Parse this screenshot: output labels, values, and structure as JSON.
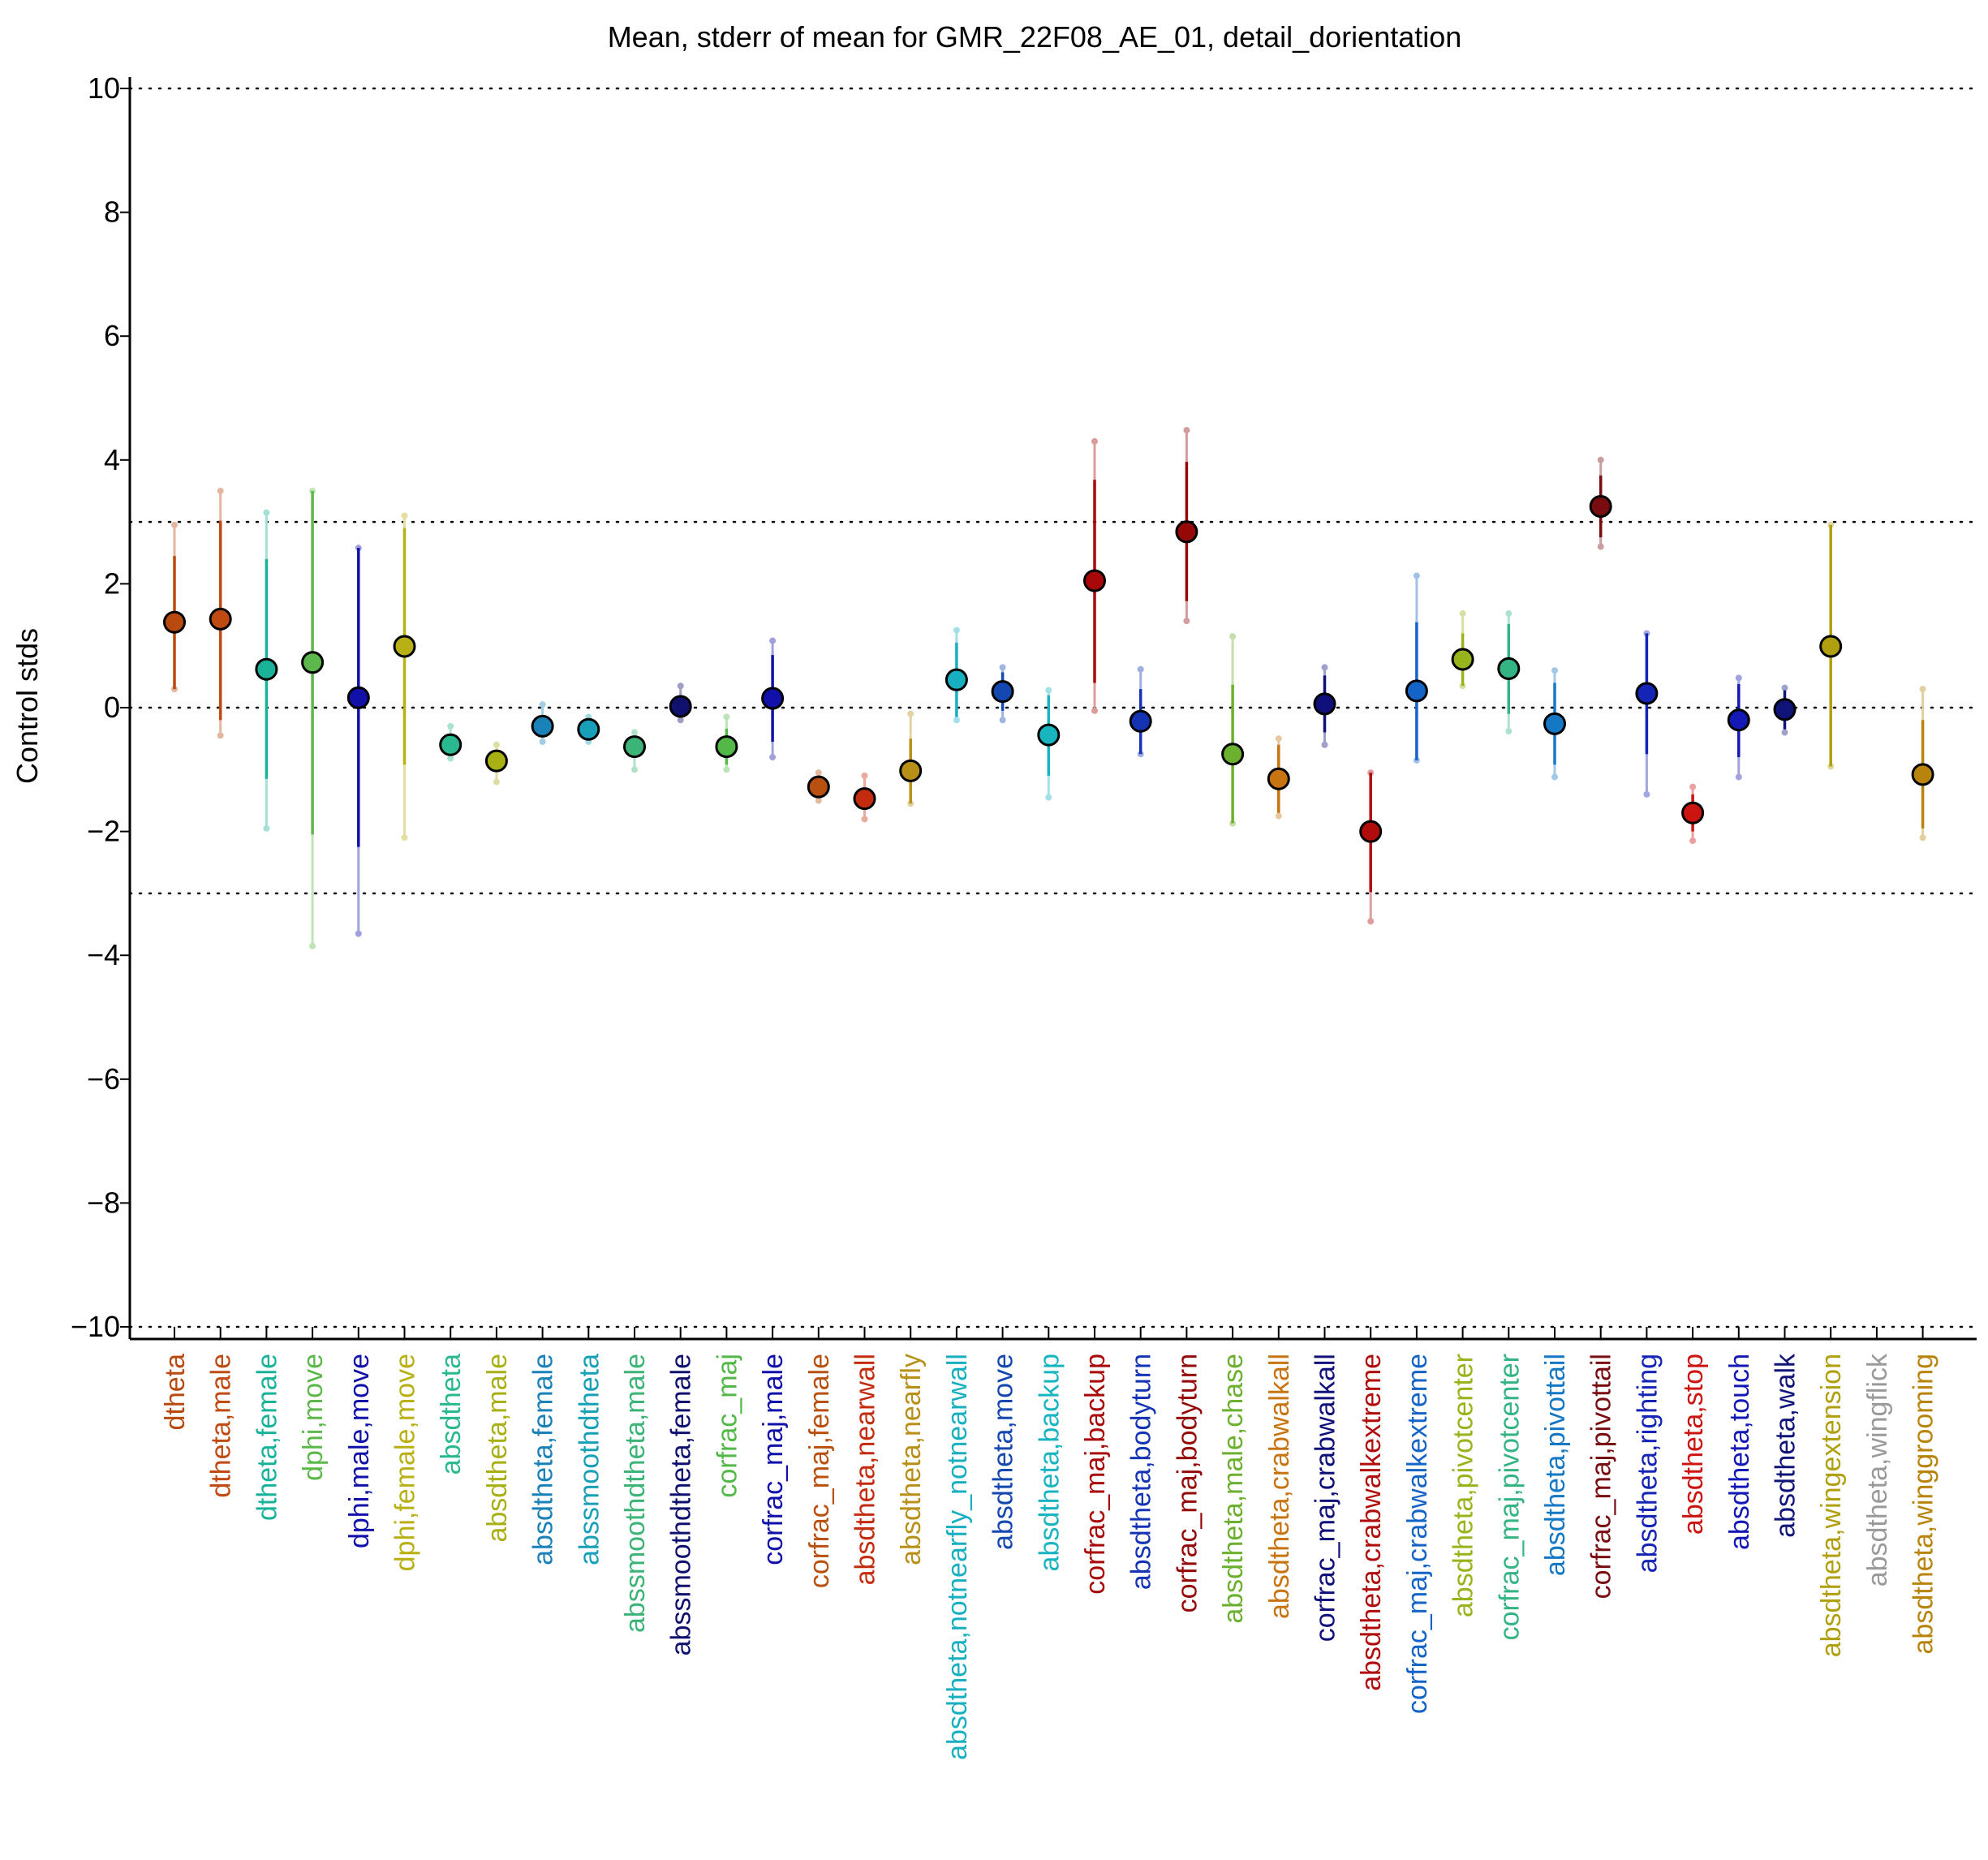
{
  "chart_data": {
    "type": "scatter",
    "title": "Mean, stderr of mean for GMR_22F08_AE_01, detail_dorientation",
    "xlabel": "",
    "ylabel": "Control stds",
    "ylim": [
      -10.2,
      10.2
    ],
    "yticks": [
      10,
      8,
      6,
      4,
      2,
      0,
      -2,
      -4,
      -6,
      -8,
      -10
    ],
    "ytick_labels": [
      "10",
      "8",
      "6",
      "4",
      "2",
      "0",
      "−2",
      "−4",
      "−6",
      "−8",
      "−10"
    ],
    "reference_lines": [
      10,
      3,
      0,
      -3,
      -10
    ],
    "grid": false,
    "points": [
      {
        "label": "dtheta",
        "color": "#b84a10",
        "mean": 1.38,
        "se_lo": 0.3,
        "se_hi": 2.45,
        "ext_lo": 0.3,
        "ext_hi": 2.95
      },
      {
        "label": "dtheta,male",
        "color": "#bf4a12",
        "mean": 1.43,
        "se_lo": -0.2,
        "se_hi": 3.02,
        "ext_lo": -0.45,
        "ext_hi": 3.5
      },
      {
        "label": "dtheta,female",
        "color": "#1ab39a",
        "mean": 0.62,
        "se_lo": -1.15,
        "se_hi": 2.4,
        "ext_lo": -1.95,
        "ext_hi": 3.15
      },
      {
        "label": "dphi,move",
        "color": "#5cb84a",
        "mean": 0.73,
        "se_lo": -2.05,
        "se_hi": 3.5,
        "ext_lo": -3.85,
        "ext_hi": 3.5
      },
      {
        "label": "dphi,male,move",
        "color": "#1111aa",
        "mean": 0.16,
        "se_lo": -2.25,
        "se_hi": 2.58,
        "ext_lo": -3.65,
        "ext_hi": 2.58
      },
      {
        "label": "dphi,female,move",
        "color": "#b8b014",
        "mean": 0.99,
        "se_lo": -0.92,
        "se_hi": 2.9,
        "ext_lo": -2.1,
        "ext_hi": 3.1
      },
      {
        "label": "absdtheta",
        "color": "#2ab890",
        "mean": -0.6,
        "se_lo": -0.72,
        "se_hi": -0.47,
        "ext_lo": -0.82,
        "ext_hi": -0.3
      },
      {
        "label": "absdtheta,male",
        "color": "#a8b014",
        "mean": -0.86,
        "se_lo": -1.0,
        "se_hi": -0.72,
        "ext_lo": -1.2,
        "ext_hi": -0.6
      },
      {
        "label": "absdtheta,female",
        "color": "#1a82b8",
        "mean": -0.3,
        "se_lo": -0.44,
        "se_hi": -0.17,
        "ext_lo": -0.55,
        "ext_hi": 0.05
      },
      {
        "label": "abssmoothdtheta",
        "color": "#18a0b8",
        "mean": -0.35,
        "se_lo": -0.45,
        "se_hi": -0.25,
        "ext_lo": -0.55,
        "ext_hi": -0.15
      },
      {
        "label": "abssmoothdtheta,male",
        "color": "#3cb478",
        "mean": -0.63,
        "se_lo": -0.8,
        "se_hi": -0.46,
        "ext_lo": -1.0,
        "ext_hi": -0.4
      },
      {
        "label": "abssmoothdtheta,female",
        "color": "#10106e",
        "mean": 0.02,
        "se_lo": -0.12,
        "se_hi": 0.16,
        "ext_lo": -0.2,
        "ext_hi": 0.35
      },
      {
        "label": "corfrac_maj",
        "color": "#52b848",
        "mean": -0.63,
        "se_lo": -0.92,
        "se_hi": -0.34,
        "ext_lo": -1.0,
        "ext_hi": -0.15
      },
      {
        "label": "corfrac_maj,male",
        "color": "#1111aa",
        "mean": 0.15,
        "se_lo": -0.55,
        "se_hi": 0.85,
        "ext_lo": -0.8,
        "ext_hi": 1.08
      },
      {
        "label": "corfrac_maj,female",
        "color": "#b85010",
        "mean": -1.28,
        "se_lo": -1.4,
        "se_hi": -1.16,
        "ext_lo": -1.5,
        "ext_hi": -1.05
      },
      {
        "label": "absdtheta,nearwall",
        "color": "#c42c10",
        "mean": -1.47,
        "se_lo": -1.6,
        "se_hi": -1.34,
        "ext_lo": -1.8,
        "ext_hi": -1.1
      },
      {
        "label": "absdtheta,nearfly",
        "color": "#b89018",
        "mean": -1.02,
        "se_lo": -1.55,
        "se_hi": -0.5,
        "ext_lo": -1.55,
        "ext_hi": -0.1
      },
      {
        "label": "absdtheta,notnearfly_notnearwall",
        "color": "#18b0c0",
        "mean": 0.45,
        "se_lo": -0.15,
        "se_hi": 1.05,
        "ext_lo": -0.2,
        "ext_hi": 1.25
      },
      {
        "label": "absdtheta,move",
        "color": "#1448b0",
        "mean": 0.26,
        "se_lo": -0.05,
        "se_hi": 0.57,
        "ext_lo": -0.2,
        "ext_hi": 0.65
      },
      {
        "label": "absdtheta,backup",
        "color": "#18b4c0",
        "mean": -0.44,
        "se_lo": -1.1,
        "se_hi": 0.2,
        "ext_lo": -1.45,
        "ext_hi": 0.28
      },
      {
        "label": "corfrac_maj,backup",
        "color": "#a80808",
        "mean": 2.05,
        "se_lo": 0.4,
        "se_hi": 3.68,
        "ext_lo": -0.05,
        "ext_hi": 4.3
      },
      {
        "label": "absdtheta,bodyturn",
        "color": "#1434b4",
        "mean": -0.22,
        "se_lo": -0.75,
        "se_hi": 0.3,
        "ext_lo": -0.75,
        "ext_hi": 0.62
      },
      {
        "label": "corfrac_maj,bodyturn",
        "color": "#940808",
        "mean": 2.84,
        "se_lo": 1.72,
        "se_hi": 3.97,
        "ext_lo": 1.4,
        "ext_hi": 4.48
      },
      {
        "label": "absdtheta,male,chase",
        "color": "#6cb030",
        "mean": -0.75,
        "se_lo": -1.87,
        "se_hi": 0.37,
        "ext_lo": -1.87,
        "ext_hi": 1.15
      },
      {
        "label": "absdtheta,crabwalkall",
        "color": "#c87410",
        "mean": -1.15,
        "se_lo": -1.7,
        "se_hi": -0.6,
        "ext_lo": -1.75,
        "ext_hi": -0.5
      },
      {
        "label": "corfrac_maj,crabwalkall",
        "color": "#10107a",
        "mean": 0.06,
        "se_lo": -0.4,
        "se_hi": 0.52,
        "ext_lo": -0.6,
        "ext_hi": 0.65
      },
      {
        "label": "absdtheta,crabwalkextreme",
        "color": "#b00c0c",
        "mean": -2.0,
        "se_lo": -2.98,
        "se_hi": -1.05,
        "ext_lo": -3.45,
        "ext_hi": -1.05
      },
      {
        "label": "corfrac_maj,crabwalkextreme",
        "color": "#1464c8",
        "mean": 0.27,
        "se_lo": -0.85,
        "se_hi": 1.38,
        "ext_lo": -0.85,
        "ext_hi": 2.13
      },
      {
        "label": "absdtheta,pivotcenter",
        "color": "#98b41c",
        "mean": 0.78,
        "se_lo": 0.35,
        "se_hi": 1.2,
        "ext_lo": 0.35,
        "ext_hi": 1.52
      },
      {
        "label": "corfrac_maj,pivotcenter",
        "color": "#34b484",
        "mean": 0.63,
        "se_lo": -0.1,
        "se_hi": 1.35,
        "ext_lo": -0.38,
        "ext_hi": 1.52
      },
      {
        "label": "absdtheta,pivottail",
        "color": "#1478c4",
        "mean": -0.26,
        "se_lo": -0.92,
        "se_hi": 0.4,
        "ext_lo": -1.12,
        "ext_hi": 0.6
      },
      {
        "label": "corfrac_maj,pivottail",
        "color": "#780c10",
        "mean": 3.25,
        "se_lo": 2.75,
        "se_hi": 3.75,
        "ext_lo": 2.6,
        "ext_hi": 4.0
      },
      {
        "label": "absdtheta,righting",
        "color": "#1424b4",
        "mean": 0.23,
        "se_lo": -0.75,
        "se_hi": 1.2,
        "ext_lo": -1.4,
        "ext_hi": 1.2
      },
      {
        "label": "absdtheta,stop",
        "color": "#cc1410",
        "mean": -1.7,
        "se_lo": -2.0,
        "se_hi": -1.4,
        "ext_lo": -2.15,
        "ext_hi": -1.28
      },
      {
        "label": "absdtheta,touch",
        "color": "#1418b4",
        "mean": -0.2,
        "se_lo": -0.8,
        "se_hi": 0.38,
        "ext_lo": -1.12,
        "ext_hi": 0.48
      },
      {
        "label": "absdtheta,walk",
        "color": "#101478",
        "mean": -0.03,
        "se_lo": -0.35,
        "se_hi": 0.28,
        "ext_lo": -0.4,
        "ext_hi": 0.32
      },
      {
        "label": "absdtheta,wingextension",
        "color": "#b0a010",
        "mean": 0.99,
        "se_lo": -0.95,
        "se_hi": 2.95,
        "ext_lo": -0.95,
        "ext_hi": 2.95
      },
      {
        "label": "absdtheta,wingflick",
        "color": "#9a9a9a",
        "mean": null,
        "se_lo": null,
        "se_hi": null,
        "ext_lo": null,
        "ext_hi": null
      },
      {
        "label": "absdtheta,winggrooming",
        "color": "#b8840c",
        "mean": -1.08,
        "se_lo": -1.95,
        "se_hi": -0.2,
        "ext_lo": -2.1,
        "ext_hi": 0.3
      }
    ]
  }
}
